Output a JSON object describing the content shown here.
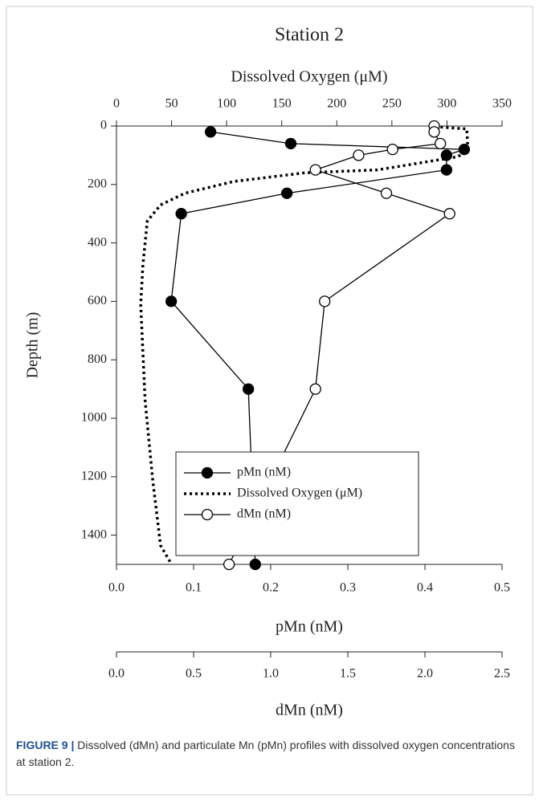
{
  "chart_data": {
    "type": "line",
    "title": "Station 2",
    "ylabel": "Depth (m)",
    "ylim": [
      0,
      1500
    ],
    "invert_y": true,
    "yticks": [
      0,
      200,
      400,
      600,
      800,
      1000,
      1200,
      1400
    ],
    "xlabel": "pMn (nM)",
    "xlim": [
      0,
      0.5
    ],
    "xticks": [
      {
        "value": 0,
        "label": "0.0"
      },
      {
        "value": 0.1,
        "label": "0.1"
      },
      {
        "value": 0.2,
        "label": "0.2"
      },
      {
        "value": 0.3,
        "label": "0.3"
      },
      {
        "value": 0.4,
        "label": "0.4"
      },
      {
        "value": 0.5,
        "label": "0.5"
      }
    ],
    "x2label": "Dissolved Oxygen (μM)",
    "x2lim": [
      0,
      350
    ],
    "x2ticks": [
      0,
      50,
      100,
      150,
      200,
      250,
      300,
      350
    ],
    "x3label": "dMn (nM)",
    "x3lim": [
      0,
      2.5
    ],
    "x3ticks": [
      {
        "value": 0,
        "label": "0.0"
      },
      {
        "value": 0.5,
        "label": "0.5"
      },
      {
        "value": 1,
        "label": "1.0"
      },
      {
        "value": 1.5,
        "label": "1.5"
      },
      {
        "value": 2,
        "label": "2.0"
      },
      {
        "value": 2.5,
        "label": "2.5"
      }
    ],
    "legend": "lower center",
    "series": [
      {
        "name": "pMn (nM)",
        "color": "#000000",
        "axis": "x",
        "linestyle": "solid",
        "marker": "filled",
        "x": [
          0.122,
          0.226,
          0.451,
          0.428,
          0.428,
          0.221,
          0.084,
          0.071,
          0.171,
          0.18
        ],
        "y": [
          20,
          60,
          80,
          100,
          150,
          230,
          300,
          600,
          900,
          1500
        ]
      },
      {
        "name": "Dissolved Oxygen (μM)",
        "color": "#000000",
        "axis": "x2",
        "linestyle": "dotted",
        "marker": null,
        "x": [
          284,
          299,
          318,
          319,
          310,
          237,
          171,
          106,
          62,
          40,
          28,
          24,
          22,
          26,
          33,
          40,
          50
        ],
        "y": [
          0,
          5,
          10,
          80,
          105,
          150,
          160,
          190,
          230,
          270,
          325,
          475,
          610,
          940,
          1215,
          1435,
          1500
        ]
      },
      {
        "name": "dMn (nM)",
        "color": "#000000",
        "axis": "x3",
        "linestyle": "solid",
        "marker": "open",
        "x": [
          2.06,
          2.06,
          2.1,
          1.79,
          1.57,
          1.29,
          1.75,
          2.16,
          1.35,
          1.29,
          0.73
        ],
        "y": [
          0,
          20,
          60,
          80,
          100,
          150,
          230,
          300,
          600,
          900,
          1500
        ]
      }
    ]
  },
  "caption": {
    "label": "FIGURE 9 |",
    "text": "Dissolved (dMn) and particulate Mn (pMn) profiles with dissolved oxygen concentrations at station 2."
  }
}
